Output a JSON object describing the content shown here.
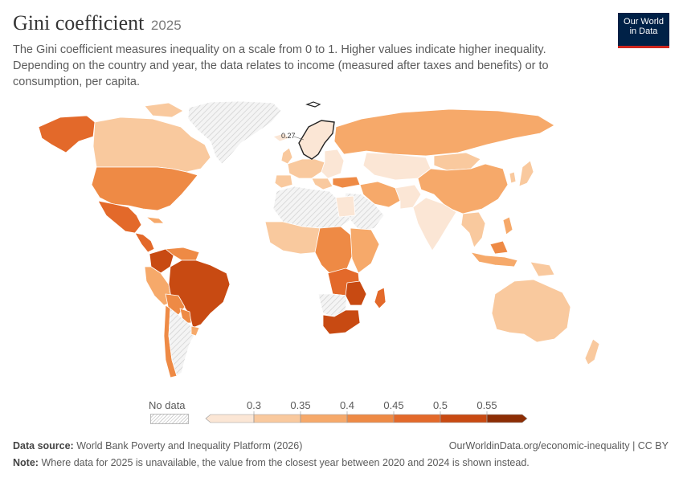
{
  "header": {
    "title": "Gini coefficient",
    "year": "2025",
    "subtitle": "The Gini coefficient measures inequality on a scale from 0 to 1. Higher values indicate higher inequality. Depending on the country and year, the data relates to income (measured after taxes and benefits) or to consumption, per capita."
  },
  "logo": {
    "line1": "Our World",
    "line2": "in Data",
    "background": "#002147",
    "accent": "#ce261e"
  },
  "map": {
    "annotation": "0.27",
    "colors": {
      "lt_030": "#fbe6d5",
      "030_035": "#f9c99e",
      "035_040": "#f6a96a",
      "040_045": "#ee8a45",
      "045_050": "#e3692a",
      "050_055": "#c84a12",
      "gt_055": "#8c2d04",
      "no_data": "#e8e8e8"
    }
  },
  "legend": {
    "no_data_label": "No data",
    "ticks": [
      "0.3",
      "0.35",
      "0.4",
      "0.45",
      "0.5",
      "0.55"
    ],
    "colors": [
      "#fbe6d5",
      "#f9c99e",
      "#f6a96a",
      "#ee8a45",
      "#e3692a",
      "#c84a12",
      "#8c2d04"
    ]
  },
  "footer": {
    "source_label": "Data source:",
    "source_text": "World Bank Poverty and Inequality Platform (2026)",
    "url": "OurWorldinData.org/economic-inequality | CC BY",
    "note_label": "Note:",
    "note_text": "Where data for 2025 is unavailable, the value from the closest year between 2020 and 2024 is shown instead."
  }
}
